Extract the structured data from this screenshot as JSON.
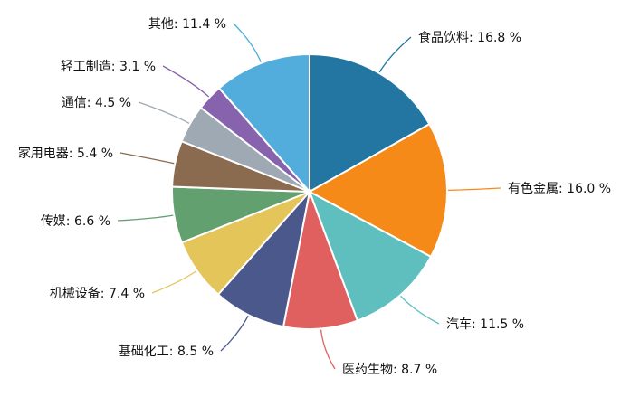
{
  "chart_data": {
    "type": "pie",
    "title": "",
    "unit": "%",
    "slices": [
      {
        "label": "食品饮料",
        "value": 16.8,
        "color": "#2276a1"
      },
      {
        "label": "有色金属",
        "value": 16.0,
        "color": "#f68a19"
      },
      {
        "label": "汽车",
        "value": 11.5,
        "color": "#5fbfbf"
      },
      {
        "label": "医药生物",
        "value": 8.7,
        "color": "#e06060"
      },
      {
        "label": "基础化工",
        "value": 8.5,
        "color": "#4a588c"
      },
      {
        "label": "机械设备",
        "value": 7.4,
        "color": "#e4c55a"
      },
      {
        "label": "传媒",
        "value": 6.6,
        "color": "#62a070"
      },
      {
        "label": "家用电器",
        "value": 5.4,
        "color": "#8b6b50"
      },
      {
        "label": "通信",
        "value": 4.5,
        "color": "#9ea9b3"
      },
      {
        "label": "轻工制造",
        "value": 3.1,
        "color": "#8762ad"
      },
      {
        "label": "其他",
        "value": 11.4,
        "color": "#52addc"
      }
    ]
  }
}
